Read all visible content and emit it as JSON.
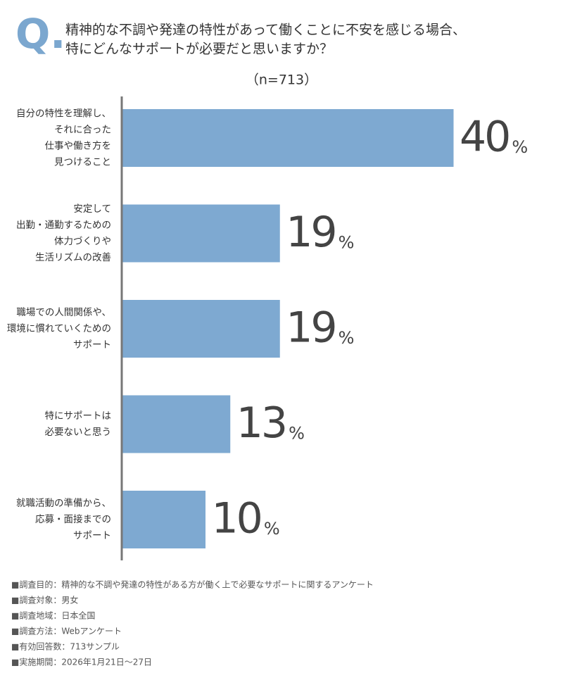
{
  "chart_data": {
    "type": "bar",
    "orientation": "horizontal",
    "title_mark": "Q.",
    "title": [
      "精神的な不調や発達の特性があって働くことに不安を感じる場合、",
      "特にどんなサポートが必要だと思いますか？"
    ],
    "subtitle": "（n=713）",
    "categories": [
      [
        "自分の特性を理解し、",
        "それに合った",
        "仕事や働き方を",
        "見つけること"
      ],
      [
        "安定して",
        "出勤・通勤するための",
        "体力づくりや",
        "生活リズムの改善"
      ],
      [
        "職場での人間関係や、",
        "環境に慣れていくための",
        "サポート"
      ],
      [
        "特にサポートは",
        "必要ないと思う"
      ],
      [
        "就職活動の準備から、",
        "応募・面接までの",
        "サポート"
      ]
    ],
    "values": [
      40,
      19,
      19,
      13,
      10
    ],
    "value_unit": "%",
    "color": "#7ea9d1",
    "notes": [
      "■調査目的：精神的な不調や発達の特性がある方が働く上で必要なサポートに関するアンケート",
      "■調査対象：男女",
      "■調査地域：日本全国",
      "■調査方法：Webアンケート",
      "■有効回答数：713サンプル",
      "■実施期間：2026年1月21日～27日"
    ]
  }
}
